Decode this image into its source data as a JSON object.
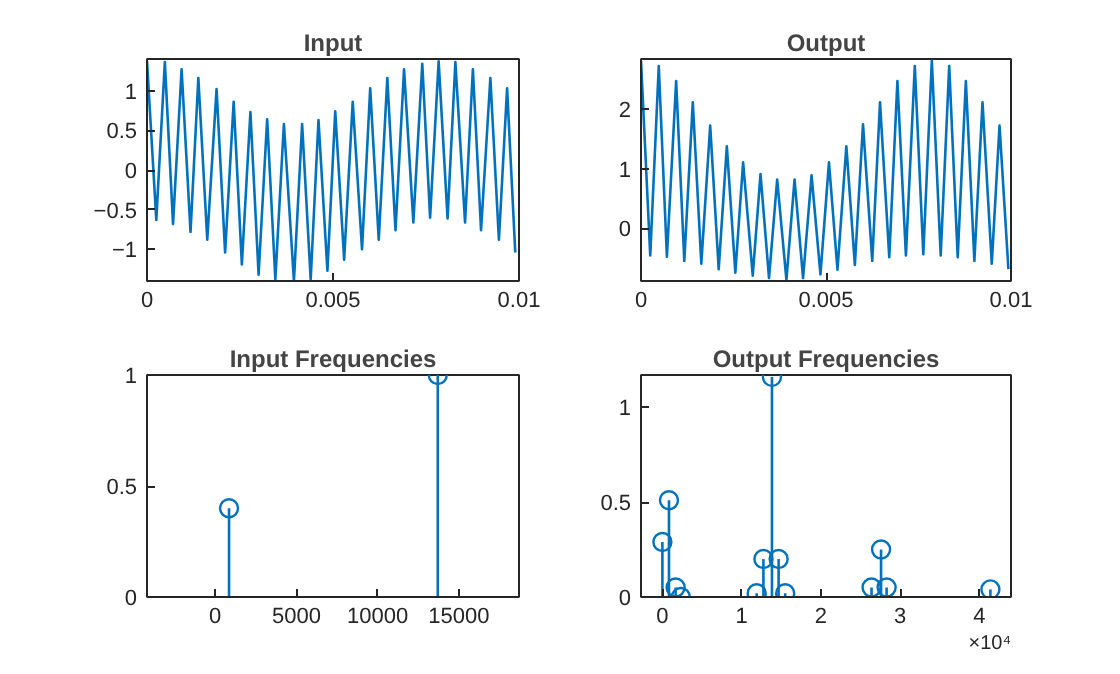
{
  "chart_data": [
    {
      "type": "line",
      "title": "Input",
      "color": "#0072bd",
      "xlim": [
        0,
        0.01
      ],
      "ylim": [
        -1.4,
        1.4
      ],
      "xticks": [
        0,
        0.005,
        0.01
      ],
      "yticks": [
        -1,
        -0.5,
        0,
        0.5,
        1
      ],
      "x": [
        0,
        0.00025,
        0.00048,
        0.0007,
        0.00093,
        0.00117,
        0.00138,
        0.00162,
        0.00187,
        0.0021,
        0.00233,
        0.00255,
        0.00278,
        0.003,
        0.00323,
        0.00345,
        0.00368,
        0.00395,
        0.00417,
        0.0044,
        0.00461,
        0.00485,
        0.00506,
        0.0053,
        0.00553,
        0.00578,
        0.006,
        0.00623,
        0.00646,
        0.00668,
        0.00691,
        0.00716,
        0.0074,
        0.00761,
        0.00784,
        0.00808,
        0.00829,
        0.00855,
        0.00876,
        0.00898,
        0.00923,
        0.00946,
        0.00968,
        0.0099
      ],
      "values": [
        1.37,
        -0.63,
        1.36,
        -0.68,
        1.27,
        -0.78,
        1.16,
        -0.88,
        1.02,
        -1.04,
        0.86,
        -1.19,
        0.73,
        -1.32,
        0.64,
        -1.38,
        0.58,
        -1.4,
        0.58,
        -1.38,
        0.63,
        -1.27,
        0.74,
        -1.13,
        0.86,
        -1.0,
        1.03,
        -0.88,
        1.16,
        -0.76,
        1.27,
        -0.66,
        1.34,
        -0.6,
        1.37,
        -0.61,
        1.36,
        -0.66,
        1.27,
        -0.76,
        1.16,
        -0.88,
        1.03,
        -1.04
      ]
    },
    {
      "type": "line",
      "title": "Output",
      "color": "#0072bd",
      "xlim": [
        0,
        0.01
      ],
      "ylim": [
        -0.89,
        2.85
      ],
      "xticks": [
        0,
        0.005,
        0.01
      ],
      "yticks": [
        0,
        1,
        2
      ],
      "x": [
        0,
        0.00025,
        0.00048,
        0.0007,
        0.00095,
        0.00117,
        0.0014,
        0.00163,
        0.00187,
        0.0021,
        0.00232,
        0.00255,
        0.00276,
        0.00302,
        0.00323,
        0.00346,
        0.00368,
        0.00393,
        0.00415,
        0.00438,
        0.00461,
        0.00485,
        0.00508,
        0.00531,
        0.00555,
        0.00578,
        0.006,
        0.00625,
        0.00646,
        0.00671,
        0.00693,
        0.00716,
        0.0074,
        0.00763,
        0.00786,
        0.0081,
        0.00833,
        0.00856,
        0.00878,
        0.00901,
        0.00923,
        0.00948,
        0.00969,
        0.00993
      ],
      "values": [
        2.82,
        -0.46,
        2.73,
        -0.48,
        2.48,
        -0.55,
        2.12,
        -0.6,
        1.73,
        -0.69,
        1.38,
        -0.75,
        1.11,
        -0.8,
        0.91,
        -0.84,
        0.82,
        -0.87,
        0.82,
        -0.84,
        0.89,
        -0.78,
        1.11,
        -0.7,
        1.38,
        -0.62,
        1.75,
        -0.55,
        2.12,
        -0.49,
        2.48,
        -0.46,
        2.73,
        -0.44,
        2.82,
        -0.46,
        2.73,
        -0.49,
        2.48,
        -0.55,
        2.12,
        -0.6,
        1.73,
        -0.69
      ]
    },
    {
      "type": "lollipop",
      "title": "Input Frequencies",
      "color": "#0072bd",
      "marker": "circle",
      "xlim": [
        -4200,
        18700
      ],
      "ylim": [
        0,
        1
      ],
      "xticks": [
        0,
        5000,
        10000,
        15000
      ],
      "yticks": [
        0,
        0.5,
        1
      ],
      "x": [
        850,
        13700
      ],
      "values": [
        0.4,
        1
      ]
    },
    {
      "type": "lollipop",
      "title": "Output Frequencies",
      "color": "#0072bd",
      "marker": "circle",
      "xlim": [
        -0.27,
        4.4
      ],
      "ylim": [
        0,
        1.17
      ],
      "xticks": [
        0,
        1,
        2,
        3,
        4
      ],
      "yticks": [
        0,
        0.5,
        1
      ],
      "annotations": [
        "×10⁴"
      ],
      "x": [
        0,
        0.083,
        0.167,
        0.233,
        1.19,
        1.275,
        1.383,
        1.467,
        1.55,
        2.64,
        2.76,
        2.83,
        4.14
      ],
      "values": [
        0.29,
        0.51,
        0.05,
        0.0,
        0.02,
        0.2,
        1.16,
        0.2,
        0.02,
        0.05,
        0.25,
        0.05,
        0.04
      ]
    }
  ]
}
